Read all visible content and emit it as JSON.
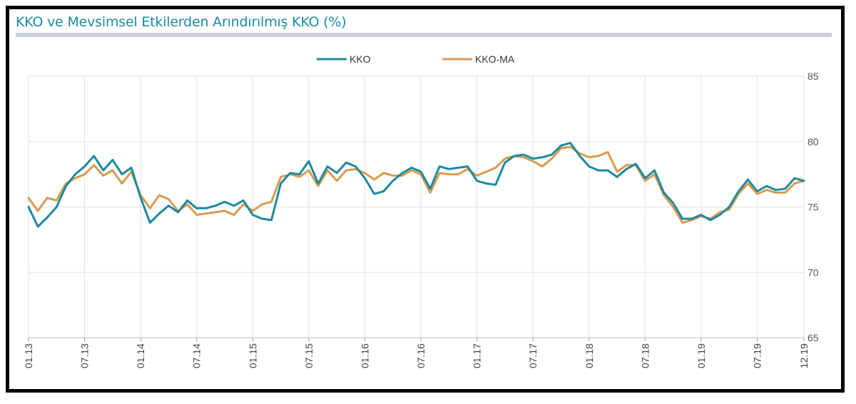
{
  "chart_data": {
    "type": "line",
    "title": "KKO ve Mevsimsel Etkilerden Arındırılmış KKO (%)",
    "xlabel": "",
    "ylabel": "",
    "ylim": [
      65,
      85
    ],
    "yticks": [
      65,
      70,
      75,
      80,
      85
    ],
    "y_axis_position": "right",
    "grid": true,
    "legend_position": "top-center",
    "x_tick_labels": [
      "01.13",
      "07.13",
      "01.14",
      "07.14",
      "01.15",
      "07.15",
      "01.16",
      "07.16",
      "01.17",
      "07.17",
      "01.18",
      "07.18",
      "01.19",
      "07.19",
      "12.19"
    ],
    "x_tick_month_index": [
      0,
      6,
      12,
      18,
      24,
      30,
      36,
      42,
      48,
      54,
      60,
      66,
      72,
      78,
      83
    ],
    "series": [
      {
        "name": "KKO",
        "color": "#1b8aa0",
        "values": [
          75.0,
          73.5,
          74.2,
          75.0,
          76.6,
          77.5,
          78.1,
          78.9,
          77.8,
          78.6,
          77.5,
          78.0,
          75.7,
          73.8,
          74.5,
          75.1,
          74.6,
          75.5,
          74.9,
          74.9,
          75.1,
          75.4,
          75.1,
          75.5,
          74.4,
          74.1,
          74.0,
          76.8,
          77.6,
          77.5,
          78.5,
          76.8,
          78.1,
          77.6,
          78.4,
          78.1,
          77.2,
          76.0,
          76.2,
          77.0,
          77.6,
          78.0,
          77.7,
          76.4,
          78.1,
          77.9,
          78.0,
          78.1,
          77.0,
          76.8,
          76.7,
          78.4,
          78.9,
          79.0,
          78.7,
          78.8,
          79.0,
          79.7,
          79.9,
          78.9,
          78.1,
          77.8,
          77.8,
          77.3,
          77.9,
          78.3,
          77.2,
          77.8,
          76.1,
          75.3,
          74.1,
          74.1,
          74.4,
          74.0,
          74.4,
          75.0,
          76.2,
          77.1,
          76.2,
          76.6,
          76.3,
          76.4,
          77.2,
          77.0
        ]
      },
      {
        "name": "KKO-MA",
        "color": "#d99a4e",
        "values": [
          75.7,
          74.7,
          75.7,
          75.5,
          76.8,
          77.2,
          77.5,
          78.2,
          77.4,
          77.8,
          76.8,
          77.7,
          75.9,
          74.9,
          75.9,
          75.6,
          74.7,
          75.2,
          74.4,
          74.5,
          74.6,
          74.7,
          74.4,
          75.2,
          74.7,
          75.2,
          75.4,
          77.3,
          77.5,
          77.3,
          77.8,
          76.6,
          77.8,
          77.0,
          77.8,
          77.9,
          77.6,
          77.1,
          77.6,
          77.4,
          77.4,
          77.8,
          77.5,
          76.1,
          77.6,
          77.5,
          77.5,
          77.9,
          77.4,
          77.7,
          78.0,
          78.7,
          78.9,
          78.8,
          78.5,
          78.1,
          78.7,
          79.5,
          79.6,
          79.1,
          78.8,
          78.9,
          79.2,
          77.7,
          78.2,
          78.2,
          77.0,
          77.5,
          75.9,
          75.0,
          73.8,
          74.0,
          74.3,
          74.1,
          74.6,
          74.8,
          76.0,
          76.8,
          76.0,
          76.3,
          76.1,
          76.1,
          76.8,
          77.0
        ]
      }
    ]
  }
}
